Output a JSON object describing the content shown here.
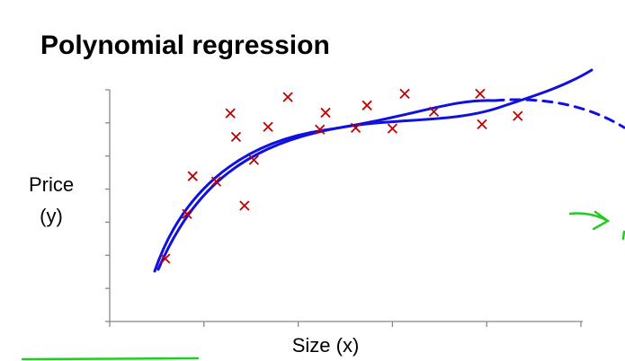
{
  "chart_data": {
    "type": "scatter",
    "title": "Polynomial regression",
    "ylabel_lines": [
      "Price",
      "(y)"
    ],
    "xlabel": "Size (x)",
    "color": "#c00000",
    "grid": false,
    "xlim": [
      0,
      5
    ],
    "xticks": [
      0,
      1,
      2,
      3,
      4,
      5
    ],
    "ylim": [
      0,
      7
    ],
    "yticks": [
      0,
      1,
      2,
      3,
      4,
      5,
      6,
      7
    ],
    "x": [
      0.59,
      0.82,
      0.88,
      1.13,
      1.28,
      1.34,
      1.43,
      1.53,
      1.68,
      1.89,
      2.23,
      2.29,
      2.61,
      2.73,
      3.0,
      3.13,
      3.44,
      3.93,
      3.95,
      4.33
    ],
    "values": [
      1.9,
      3.25,
      4.39,
      4.23,
      6.29,
      5.58,
      3.5,
      4.88,
      5.88,
      6.78,
      5.8,
      6.31,
      5.85,
      6.53,
      5.83,
      6.88,
      6.34,
      6.88,
      5.96,
      6.21
    ]
  }
}
